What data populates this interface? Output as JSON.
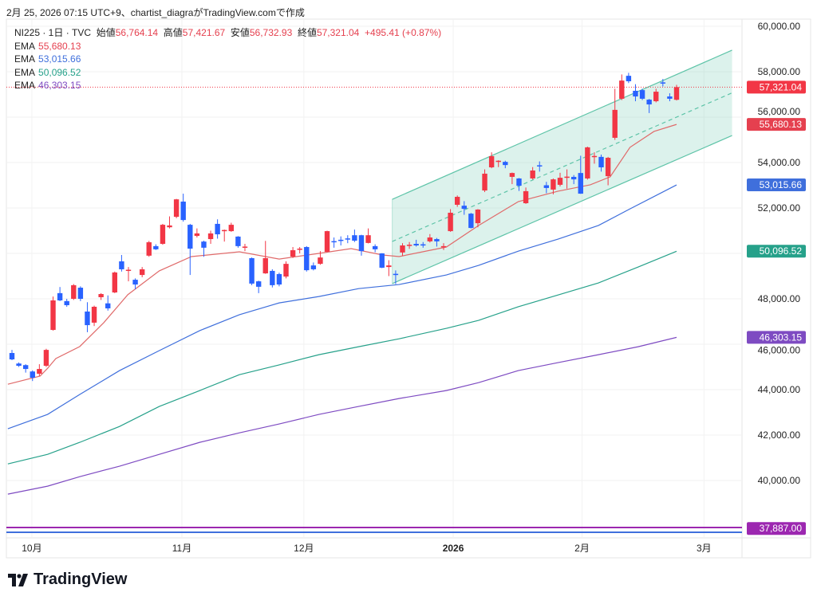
{
  "caption": "2月 25, 2026 07:15 UTC+9、chartist_diagraがTradingView.comで作成",
  "legend": {
    "symbol": "NI225 · 1日 · TVC",
    "open_label": "始値",
    "open": "56,764.14",
    "high_label": "高値",
    "high": "57,421.67",
    "low_label": "安値",
    "low": "56,732.93",
    "close_label": "終値",
    "close": "57,321.04",
    "change": "+495.41 (+0.87%)",
    "emas": [
      {
        "label": "EMA",
        "value": "55,680.13",
        "color": "#e5404f"
      },
      {
        "label": "EMA",
        "value": "53,015.66",
        "color": "#3f6fdc"
      },
      {
        "label": "EMA",
        "value": "50,096.52",
        "color": "#26a18a"
      },
      {
        "label": "EMA",
        "value": "46,303.15",
        "color": "#7e4bc2"
      }
    ]
  },
  "logo_text": "TradingView",
  "chart_data": {
    "type": "candlestick",
    "title": "NI225 · 1日 · TVC",
    "ylim": [
      37500,
      60500
    ],
    "colors": {
      "up": "#f23645",
      "down": "#2962ff",
      "channel": "#5ec4a8"
    },
    "y_ticks": [
      {
        "v": 60000,
        "label": "60,000.00"
      },
      {
        "v": 58000,
        "label": "58,000.00"
      },
      {
        "v": 56000,
        "label": "56,000.00"
      },
      {
        "v": 54000,
        "label": "54,000.00"
      },
      {
        "v": 52000,
        "label": "52,000.00"
      },
      {
        "v": 48000,
        "label": "48,000.00"
      },
      {
        "v": 46000,
        "label": "46,000.00"
      },
      {
        "v": 44000,
        "label": "44,000.00"
      },
      {
        "v": 42000,
        "label": "42,000.00"
      },
      {
        "v": 40000,
        "label": "40,000.00"
      }
    ],
    "x_ticks": [
      {
        "i": 2.9,
        "label": "10月"
      },
      {
        "i": 24.8,
        "label": "11月"
      },
      {
        "i": 42.6,
        "label": "12月"
      },
      {
        "i": 64.4,
        "label": "2026",
        "bold": true
      },
      {
        "i": 83.2,
        "label": "2月"
      },
      {
        "i": 101,
        "label": "3月"
      }
    ],
    "price_labels": [
      {
        "v": 57321.04,
        "label": "57,321.04",
        "color": "#f23645"
      },
      {
        "v": 55680.13,
        "label": "55,680.13",
        "color": "#e5404f"
      },
      {
        "v": 53015.66,
        "label": "53,015.66",
        "color": "#3f6fdc"
      },
      {
        "v": 50096.52,
        "label": "50,096.52",
        "color": "#26a18a"
      },
      {
        "v": 46303.15,
        "label": "46,303.15",
        "color": "#7e4bc2"
      },
      {
        "v": 37887.0,
        "label": "37,887.00",
        "color": "#9c27b0"
      }
    ],
    "last_close": 57321.04,
    "hlines": [
      {
        "v": 37930,
        "color": "#9c27b0"
      },
      {
        "v": 37720,
        "color": "#3f6fdc"
      }
    ],
    "channel": {
      "start_i": 55.5,
      "end_i": 105.1,
      "upper": [
        52380,
        58950
      ],
      "lower": [
        48670,
        55190
      ]
    },
    "candles_ohlc": [
      [
        45614,
        45750,
        45300,
        45333
      ],
      [
        45150,
        45200,
        45000,
        45050
      ],
      [
        45080,
        45120,
        44750,
        44910
      ],
      [
        44800,
        44850,
        44380,
        44525
      ],
      [
        44700,
        45120,
        44600,
        44910
      ],
      [
        45050,
        45800,
        45000,
        45750
      ],
      [
        46630,
        48100,
        46600,
        47930
      ],
      [
        48250,
        48520,
        47900,
        47930
      ],
      [
        47900,
        48000,
        47650,
        47720
      ],
      [
        48000,
        48650,
        47950,
        48600
      ],
      [
        48490,
        48550,
        47900,
        48000
      ],
      [
        47440,
        47850,
        46530,
        46840
      ],
      [
        46950,
        47700,
        46800,
        47650
      ],
      [
        48070,
        48250,
        47950,
        48210
      ],
      [
        47800,
        48150,
        47480,
        47580
      ],
      [
        48280,
        49200,
        48250,
        49160
      ],
      [
        49650,
        49930,
        49200,
        49300
      ],
      [
        49260,
        49400,
        48770,
        49280
      ],
      [
        48840,
        48900,
        48420,
        48630
      ],
      [
        49050,
        49400,
        48950,
        49300
      ],
      [
        49900,
        50550,
        49850,
        50490
      ],
      [
        50320,
        50400,
        50150,
        50180
      ],
      [
        50420,
        51300,
        50380,
        51260
      ],
      [
        51150,
        51630,
        51100,
        51230
      ],
      [
        51610,
        52400,
        51550,
        52380
      ],
      [
        52280,
        52630,
        51400,
        51470
      ],
      [
        51260,
        51300,
        49050,
        50210
      ],
      [
        50770,
        51100,
        50700,
        50880
      ],
      [
        50520,
        50560,
        49850,
        50250
      ],
      [
        50630,
        51000,
        50420,
        50880
      ],
      [
        51300,
        51500,
        50650,
        50840
      ],
      [
        51010,
        51050,
        50520,
        51030
      ],
      [
        50980,
        51350,
        50950,
        51260
      ],
      [
        50740,
        50760,
        50250,
        50320
      ],
      [
        50280,
        50420,
        50100,
        50300
      ],
      [
        49790,
        49820,
        48600,
        48670
      ],
      [
        48770,
        48800,
        48250,
        48530
      ],
      [
        49120,
        50550,
        49100,
        49790
      ],
      [
        49230,
        49300,
        48500,
        48600
      ],
      [
        49090,
        49150,
        48550,
        48630
      ],
      [
        48980,
        49650,
        48900,
        49540
      ],
      [
        49860,
        50280,
        49800,
        50140
      ],
      [
        50200,
        50280,
        50000,
        50210
      ],
      [
        50280,
        50320,
        49200,
        49260
      ],
      [
        49470,
        49600,
        49250,
        49300
      ],
      [
        49540,
        50100,
        49500,
        49820
      ],
      [
        50070,
        51000,
        50050,
        50980
      ],
      [
        50540,
        50700,
        50250,
        50500
      ],
      [
        50600,
        50750,
        50350,
        50570
      ],
      [
        50660,
        50800,
        50450,
        50640
      ],
      [
        50800,
        51050,
        50500,
        50560
      ],
      [
        50800,
        50820,
        49900,
        50100
      ],
      [
        50460,
        51100,
        50440,
        50800
      ],
      [
        50320,
        50400,
        50050,
        50180
      ],
      [
        50000,
        50010,
        49350,
        49370
      ],
      [
        49400,
        49700,
        49000,
        49470
      ],
      [
        49100,
        49250,
        48650,
        49060
      ],
      [
        50040,
        50450,
        49900,
        50350
      ],
      [
        50360,
        50500,
        50200,
        50380
      ],
      [
        50420,
        50600,
        50300,
        50350
      ],
      [
        50400,
        50500,
        50250,
        50390
      ],
      [
        50530,
        50850,
        50480,
        50700
      ],
      [
        50630,
        50680,
        50300,
        50530
      ],
      [
        50300,
        50450,
        50150,
        50320
      ],
      [
        50980,
        51950,
        50950,
        51790
      ],
      [
        52140,
        52550,
        52050,
        52490
      ],
      [
        52100,
        52300,
        51700,
        51960
      ],
      [
        51750,
        51780,
        51100,
        51120
      ],
      [
        51330,
        51950,
        51150,
        51930
      ],
      [
        52770,
        53700,
        52700,
        53510
      ],
      [
        53790,
        54450,
        53750,
        54280
      ],
      [
        54040,
        54100,
        53800,
        54080
      ],
      [
        54030,
        54080,
        53750,
        53890
      ],
      [
        53370,
        53560,
        53050,
        53540
      ],
      [
        53300,
        53320,
        52750,
        52980
      ],
      [
        52210,
        52900,
        52180,
        52740
      ],
      [
        53300,
        53800,
        53250,
        53650
      ],
      [
        53880,
        54050,
        53600,
        53840
      ],
      [
        53000,
        53150,
        52650,
        52880
      ],
      [
        52810,
        53300,
        52600,
        53260
      ],
      [
        53020,
        53550,
        52950,
        53330
      ],
      [
        53360,
        53700,
        52850,
        53380
      ],
      [
        53370,
        53450,
        53050,
        53260
      ],
      [
        53540,
        54300,
        52620,
        52630
      ],
      [
        53300,
        54700,
        53250,
        54670
      ],
      [
        54260,
        54450,
        53950,
        54290
      ],
      [
        54250,
        54350,
        53600,
        53790
      ],
      [
        53400,
        54250,
        53000,
        54210
      ],
      [
        55090,
        57250,
        55000,
        56320
      ],
      [
        56810,
        57880,
        56750,
        57610
      ],
      [
        57820,
        57950,
        57500,
        57580
      ],
      [
        57160,
        57450,
        56700,
        56910
      ],
      [
        57190,
        57250,
        56750,
        56810
      ],
      [
        56770,
        56800,
        56180,
        56560
      ],
      [
        56700,
        57250,
        56650,
        57120
      ],
      [
        57530,
        57680,
        57350,
        57510
      ],
      [
        56910,
        57050,
        56700,
        56810
      ],
      [
        56764.14,
        57421.67,
        56732.93,
        57321.04
      ]
    ],
    "ema_series": [
      {
        "name": "EMA 55,680.13",
        "color": "#e06a6a",
        "points": [
          [
            -0.6,
            44240
          ],
          [
            4.1,
            44600
          ],
          [
            5.2,
            44940
          ],
          [
            6.4,
            45370
          ],
          [
            9.9,
            45900
          ],
          [
            13.4,
            46950
          ],
          [
            16.9,
            48180
          ],
          [
            21.5,
            49230
          ],
          [
            26.2,
            49860
          ],
          [
            33.2,
            50070
          ],
          [
            39,
            49750
          ],
          [
            44.8,
            50000
          ],
          [
            49.5,
            50210
          ],
          [
            54.1,
            49930
          ],
          [
            56.5,
            49860
          ],
          [
            63.4,
            50280
          ],
          [
            68.1,
            51230
          ],
          [
            73.9,
            52280
          ],
          [
            79.7,
            52740
          ],
          [
            84.4,
            53020
          ],
          [
            87.3,
            53370
          ],
          [
            90.2,
            54670
          ],
          [
            93.7,
            55370
          ],
          [
            97,
            55680
          ]
        ]
      },
      {
        "name": "EMA 53,015.66",
        "color": "#3f6fdc",
        "points": [
          [
            -0.6,
            42280
          ],
          [
            5.2,
            42910
          ],
          [
            9.9,
            43790
          ],
          [
            15.7,
            44840
          ],
          [
            21.5,
            45720
          ],
          [
            27.4,
            46600
          ],
          [
            33.2,
            47300
          ],
          [
            39,
            47820
          ],
          [
            44.8,
            48100
          ],
          [
            50.6,
            48450
          ],
          [
            56.5,
            48630
          ],
          [
            63.4,
            49050
          ],
          [
            68.1,
            49470
          ],
          [
            73.9,
            50100
          ],
          [
            79.7,
            50630
          ],
          [
            85.6,
            51230
          ],
          [
            90.2,
            51960
          ],
          [
            97,
            53015
          ]
        ]
      },
      {
        "name": "EMA 50,096.52",
        "color": "#26a18a",
        "points": [
          [
            -0.6,
            40730
          ],
          [
            5.2,
            41150
          ],
          [
            9.9,
            41680
          ],
          [
            15.7,
            42380
          ],
          [
            21.5,
            43260
          ],
          [
            27.4,
            43960
          ],
          [
            33.2,
            44660
          ],
          [
            39,
            45090
          ],
          [
            44.8,
            45540
          ],
          [
            50.6,
            45890
          ],
          [
            56.5,
            46240
          ],
          [
            63.4,
            46700
          ],
          [
            68.1,
            47050
          ],
          [
            73.9,
            47650
          ],
          [
            79.7,
            48170
          ],
          [
            85.6,
            48700
          ],
          [
            91.4,
            49400
          ],
          [
            97,
            50096
          ]
        ]
      },
      {
        "name": "EMA 46,303.15",
        "color": "#7e4bc2",
        "points": [
          [
            -0.6,
            39400
          ],
          [
            5.2,
            39750
          ],
          [
            9.9,
            40170
          ],
          [
            15.7,
            40630
          ],
          [
            21.5,
            41150
          ],
          [
            27.4,
            41680
          ],
          [
            33.2,
            42100
          ],
          [
            39,
            42490
          ],
          [
            44.8,
            42910
          ],
          [
            50.6,
            43260
          ],
          [
            56.5,
            43610
          ],
          [
            63.4,
            43960
          ],
          [
            68.1,
            44310
          ],
          [
            73.9,
            44840
          ],
          [
            79.7,
            45190
          ],
          [
            85.6,
            45540
          ],
          [
            91.4,
            45890
          ],
          [
            97,
            46303
          ]
        ]
      }
    ]
  }
}
